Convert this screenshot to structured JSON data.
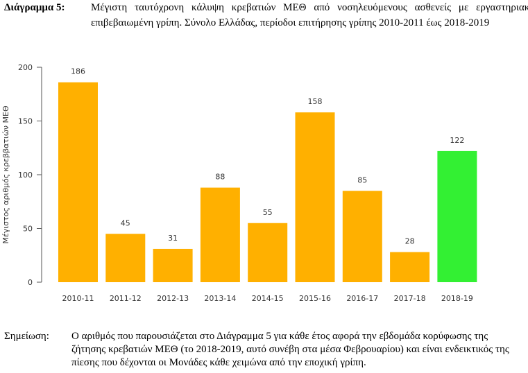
{
  "caption": {
    "label": "Διάγραμμα 5:",
    "text": "Μέγιστη ταυτόχρονη κάλυψη κρεβατιών ΜΕΘ από νοσηλευόμενους ασθενείς με εργαστηριακά επιβεβαιωμένη γρίπη. Σύνολο Ελλάδας, περίοδοι επιτήρησης γρίπης 2010-2011 έως 2018-2019"
  },
  "note": {
    "label": "Σημείωση:",
    "text": "Ο αριθμός που παρουσιάζεται στο Διάγραμμα 5 για κάθε έτος αφορά την εβδομάδα κορύφωσης της ζήτησης κρεβατιών ΜΕΘ (το 2018-2019, αυτό συνέβη στα μέσα Φεβρουαρίου) και είναι ενδεικτικός της πίεσης που δέχονται οι Μονάδες κάθε χειμώνα από την εποχική γρίπη."
  },
  "chart_data": {
    "type": "bar",
    "title": "",
    "xlabel": "",
    "ylabel": "Μέγιστος αριθμός κρεββατιών ΜΕΘ",
    "ylim": [
      0,
      200
    ],
    "yticks": [
      0,
      50,
      100,
      150,
      200
    ],
    "grid": false,
    "categories": [
      "2010-11",
      "2011-12",
      "2012-13",
      "2013-14",
      "2014-15",
      "2015-16",
      "2016-17",
      "2017-18",
      "2018-19"
    ],
    "values": [
      186,
      45,
      31,
      88,
      55,
      158,
      85,
      28,
      122
    ],
    "colors": [
      "#FFB000",
      "#FFB000",
      "#FFB000",
      "#FFB000",
      "#FFB000",
      "#FFB000",
      "#FFB000",
      "#FFB000",
      "#33F033"
    ],
    "data_labels": true
  }
}
